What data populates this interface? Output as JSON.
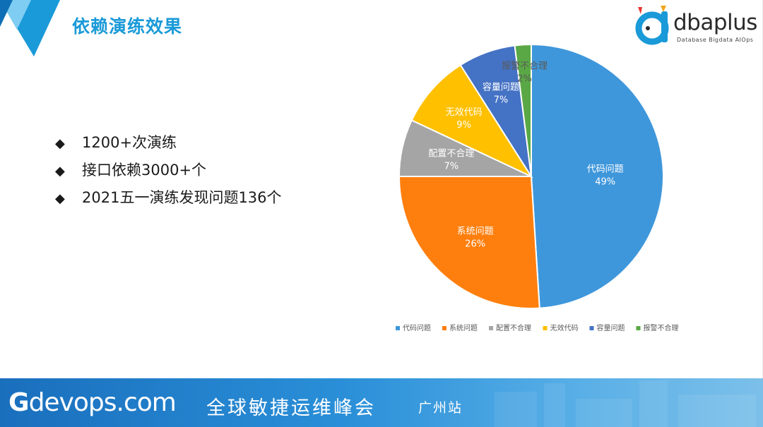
{
  "slide": {
    "title": "依赖演练效果",
    "brand": {
      "name": "dbaplus",
      "subtitle": "Database  Bigdata  AIOps"
    },
    "bullets": [
      {
        "text": "1200+次演练"
      },
      {
        "text": "接口依赖3000+个"
      },
      {
        "text": "2021五一演练发现问题136个"
      }
    ],
    "bullet_marker": "◆",
    "footer": {
      "logo_g": "G",
      "logo_rest": "devops.com",
      "tagline": "全球敏捷运维峰会",
      "city": "广州站"
    }
  },
  "chart_data": {
    "type": "pie",
    "title": "",
    "categories": [
      "代码问题",
      "系统问题",
      "配置不合理",
      "无效代码",
      "容量问题",
      "报警不合理"
    ],
    "values": [
      49,
      26,
      7,
      9,
      7,
      2
    ],
    "value_unit": "%",
    "colors": [
      "#3f97db",
      "#ff7f0e",
      "#a5a5a5",
      "#ffc000",
      "#4472c4",
      "#5aa845"
    ],
    "legend_position": "bottom",
    "start": "12 o'clock, clockwise",
    "label_colors": [
      "#ffffff",
      "#ffffff",
      "#ffffff",
      "#ffffff",
      "#ffffff",
      "#595959"
    ]
  }
}
